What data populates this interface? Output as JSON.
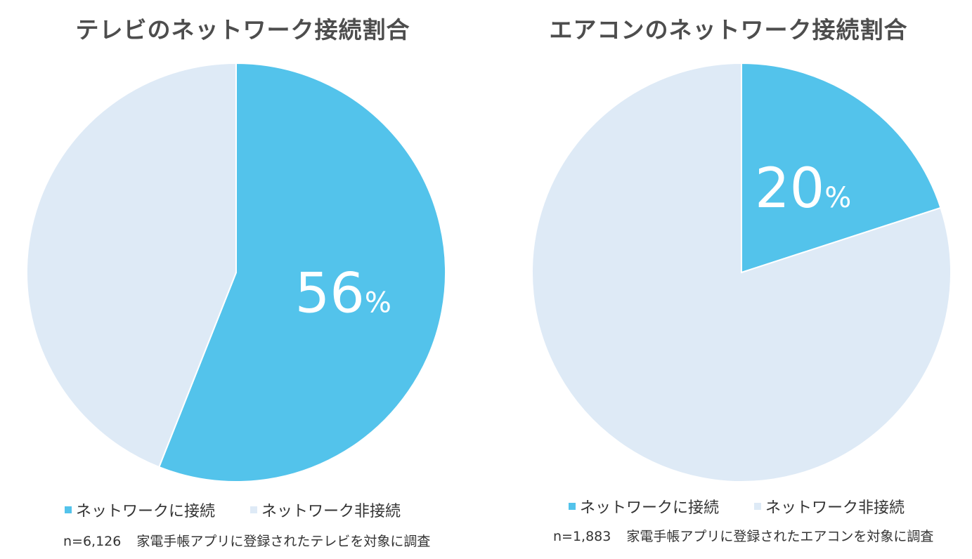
{
  "chart_data": [
    {
      "type": "pie",
      "title": "テレビのネットワーク接続割合",
      "categories": [
        "ネットワークに接続",
        "ネットワーク非接続"
      ],
      "values": [
        56,
        44
      ],
      "data_labels": [
        {
          "value": "56",
          "unit": "%"
        },
        null
      ],
      "colors": [
        "#53c3eb",
        "#deeaf6"
      ],
      "start_angle": "12-o'clock",
      "direction": "clockwise",
      "legend": "bottom",
      "footnote": {
        "n": "n=6,126",
        "text": "家電手帳アプリに登録されたテレビを対象に調査"
      }
    },
    {
      "type": "pie",
      "title": "エアコンのネットワーク接続割合",
      "categories": [
        "ネットワークに接続",
        "ネットワーク非接続"
      ],
      "values": [
        20,
        80
      ],
      "data_labels": [
        {
          "value": "20",
          "unit": "%"
        },
        null
      ],
      "colors": [
        "#53c3eb",
        "#deeaf6"
      ],
      "start_angle": "12-o'clock",
      "direction": "clockwise",
      "legend": "bottom",
      "footnote": {
        "n": "n=1,883",
        "text": "家電手帳アプリに登録されたエアコンを対象に調査"
      }
    }
  ]
}
